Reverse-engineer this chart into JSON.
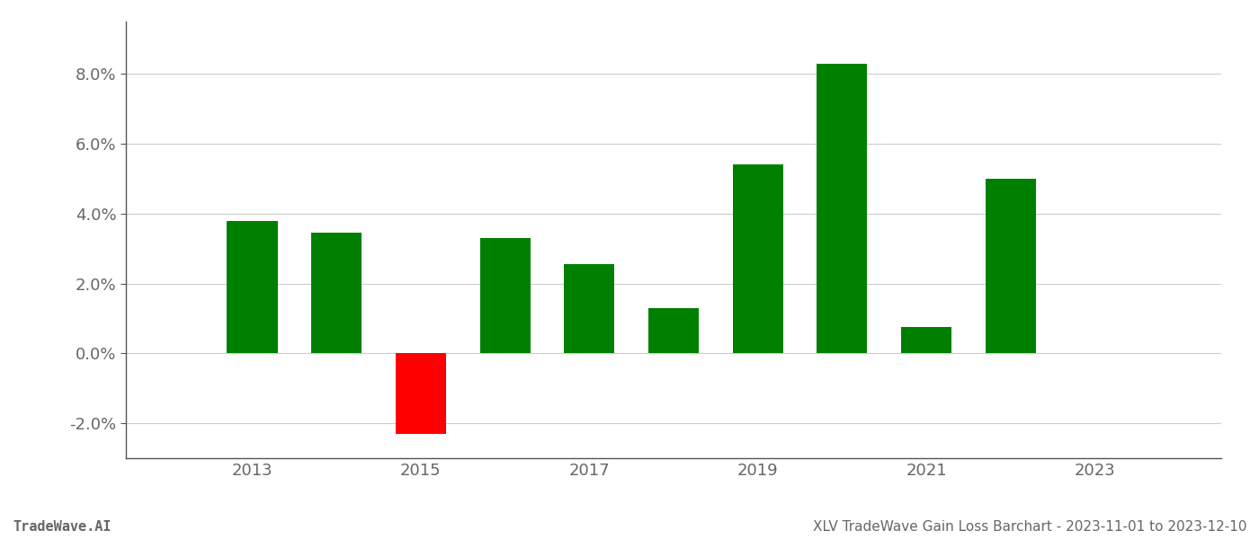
{
  "years": [
    2013,
    2014,
    2015,
    2016,
    2017,
    2018,
    2019,
    2020,
    2021,
    2022
  ],
  "values": [
    0.038,
    0.0345,
    -0.023,
    0.033,
    0.0255,
    0.013,
    0.054,
    0.083,
    0.0075,
    0.05
  ],
  "colors": [
    "#008000",
    "#008000",
    "#ff0000",
    "#008000",
    "#008000",
    "#008000",
    "#008000",
    "#008000",
    "#008000",
    "#008000"
  ],
  "ylim": [
    -0.03,
    0.095
  ],
  "yticks": [
    -0.02,
    0.0,
    0.02,
    0.04,
    0.06,
    0.08
  ],
  "xtick_labels": [
    "2013",
    "2015",
    "2017",
    "2019",
    "2021",
    "2023"
  ],
  "xtick_positions": [
    2013,
    2015,
    2017,
    2019,
    2021,
    2023
  ],
  "footer_left": "TradeWave.AI",
  "footer_right": "XLV TradeWave Gain Loss Barchart - 2023-11-01 to 2023-12-10",
  "background_color": "#ffffff",
  "bar_width": 0.6,
  "grid_color": "#cccccc",
  "axis_color": "#555555",
  "tick_label_color": "#666666",
  "footer_fontsize": 11,
  "tick_fontsize": 13,
  "xlim_left": 2011.5,
  "xlim_right": 2024.5
}
